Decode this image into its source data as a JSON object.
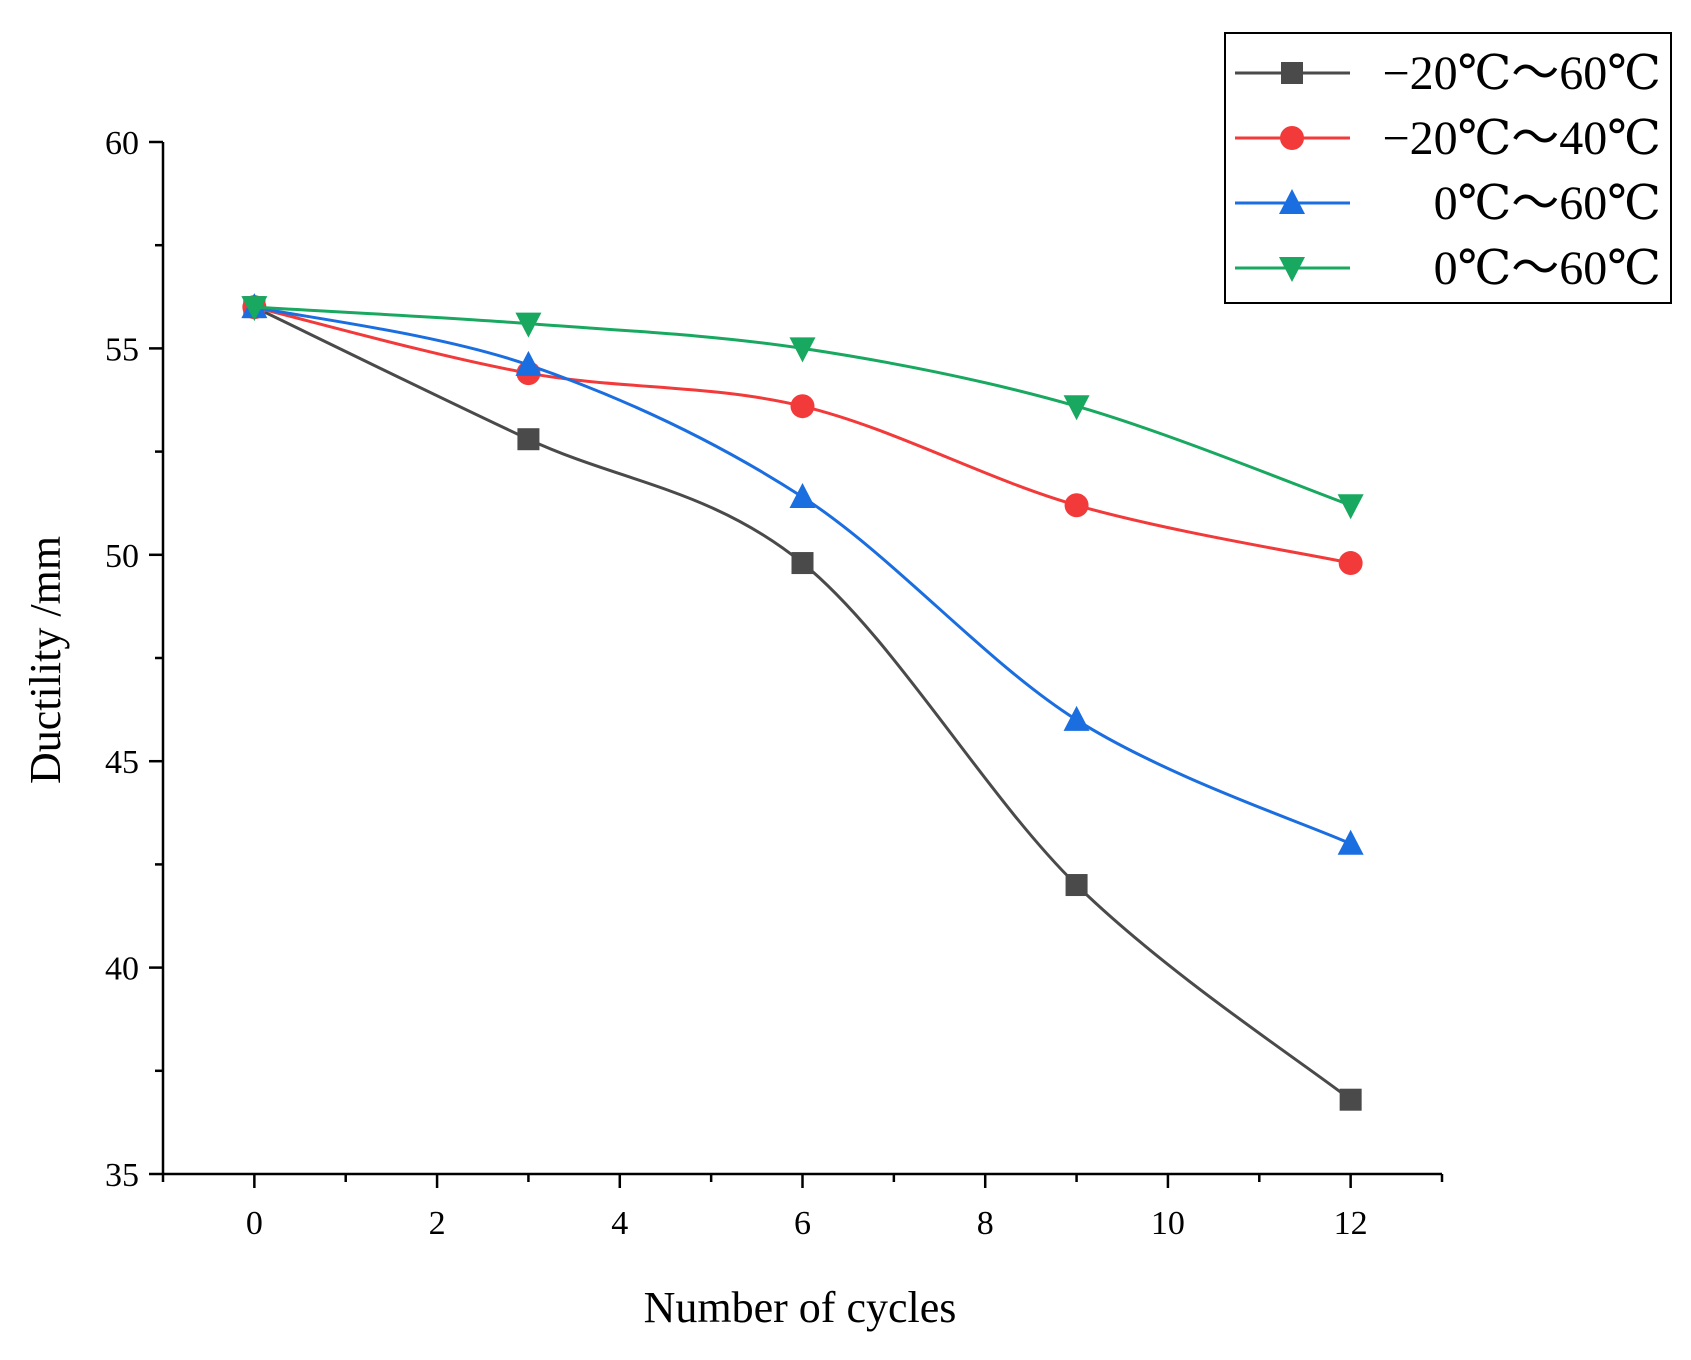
{
  "chart_data": {
    "type": "line",
    "title": "",
    "xlabel": "Number of cycles",
    "ylabel": "Ductility /mm",
    "xlim": [
      -1,
      13
    ],
    "ylim": [
      35,
      60
    ],
    "xticks": [
      0,
      2,
      4,
      6,
      8,
      10,
      12
    ],
    "yticks": [
      35,
      40,
      45,
      50,
      55,
      60
    ],
    "x": [
      0,
      3,
      6,
      9,
      12
    ],
    "legend_position": "top-right",
    "series": [
      {
        "name": "−20℃～60℃",
        "color": "#4a4a4a",
        "marker": "square",
        "values": [
          56.0,
          52.8,
          49.8,
          42.0,
          36.8
        ]
      },
      {
        "name": "−20℃～40℃",
        "color": "#f23a3a",
        "marker": "circle",
        "values": [
          56.0,
          54.4,
          53.6,
          51.2,
          49.8
        ]
      },
      {
        "name": "0℃～60℃",
        "color": "#1a6ee0",
        "marker": "triangle-up",
        "values": [
          56.0,
          54.6,
          51.4,
          46.0,
          43.0
        ]
      },
      {
        "name": "0℃～60℃",
        "color": "#18a860",
        "marker": "triangle-down",
        "values": [
          56.0,
          55.6,
          55.0,
          53.6,
          51.2
        ]
      }
    ]
  }
}
